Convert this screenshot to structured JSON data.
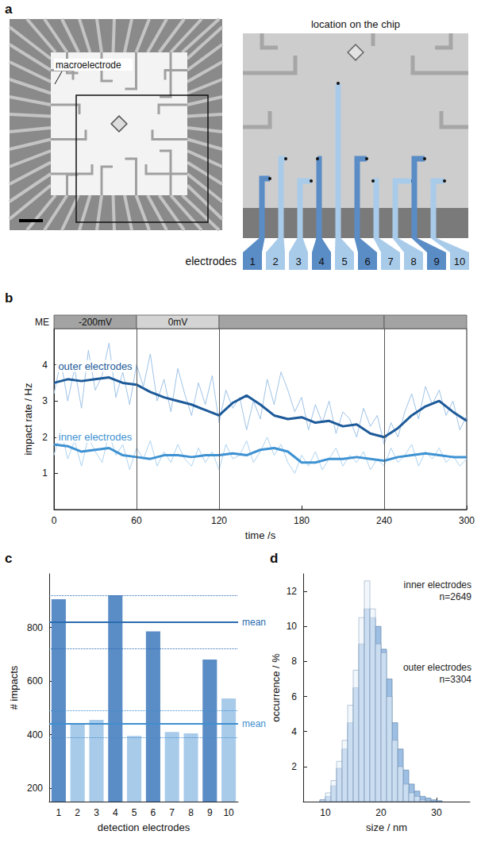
{
  "figure": {
    "panel_label": "a",
    "overview": {
      "annotation": "macroelectrode"
    },
    "detail": {
      "title": "location on the chip",
      "electrodes_label": "electrodes",
      "electrodes": [
        1,
        2,
        3,
        4,
        5,
        6,
        7,
        8,
        9,
        10
      ],
      "colors": [
        "#5a8cc6",
        "#a9cbea",
        "#a9cbea",
        "#5a8cc6",
        "#a9cbea",
        "#5a8cc6",
        "#a9cbea",
        "#a9cbea",
        "#5a8cc6",
        "#a9cbea"
      ]
    }
  },
  "chart_data": [
    {
      "panel_label": "b",
      "type": "line",
      "xlabel": "time /s",
      "ylabel": "impact rate / Hz",
      "xlim": [
        0,
        300
      ],
      "xticks": [
        0,
        60,
        120,
        180,
        240,
        300
      ],
      "ylim": [
        0,
        5
      ],
      "yticks": [
        1,
        2,
        3,
        4
      ],
      "grid": false,
      "electrode_potential": {
        "label": "ME",
        "phases": [
          {
            "start": 0,
            "end": 60,
            "label": "-200mV",
            "color": "#a3a3a3"
          },
          {
            "start": 60,
            "end": 120,
            "label": "0mV",
            "color": "#d4d4d4"
          },
          {
            "start": 120,
            "end": 240,
            "label": null,
            "color": "#a3a3a3"
          },
          {
            "start": 240,
            "end": 300,
            "label": null,
            "color": "#a3a3a3"
          }
        ]
      },
      "series": [
        {
          "color": "#9fc3e7",
          "line_style": "thin",
          "x": [
            0,
            5,
            10,
            15,
            20,
            25,
            30,
            35,
            40,
            45,
            50,
            55,
            60,
            65,
            70,
            75,
            80,
            85,
            90,
            95,
            100,
            105,
            110,
            115,
            120,
            125,
            130,
            135,
            140,
            145,
            150,
            155,
            160,
            165,
            170,
            175,
            180,
            185,
            190,
            195,
            200,
            205,
            210,
            215,
            220,
            225,
            230,
            235,
            240,
            245,
            250,
            255,
            260,
            265,
            270,
            275,
            280,
            285,
            290,
            295,
            300
          ],
          "values": [
            3.2,
            4.1,
            3.0,
            3.9,
            2.8,
            4.4,
            3.3,
            3.7,
            4.6,
            3.1,
            3.8,
            2.9,
            4.0,
            3.4,
            4.3,
            3.0,
            3.6,
            2.7,
            3.9,
            3.2,
            2.6,
            3.5,
            2.9,
            3.7,
            2.4,
            3.3,
            2.8,
            3.1,
            2.2,
            3.0,
            2.5,
            3.6,
            2.9,
            3.8,
            3.3,
            2.7,
            3.1,
            2.2,
            2.9,
            2.4,
            3.0,
            2.1,
            2.7,
            2.5,
            2.0,
            2.8,
            2.3,
            2.6,
            1.8,
            2.4,
            2.0,
            2.7,
            3.2,
            2.5,
            3.4,
            2.9,
            3.3,
            2.6,
            3.0,
            2.2,
            2.6
          ]
        },
        {
          "color": "#aed3f0",
          "line_style": "thin",
          "x": [
            0,
            5,
            10,
            15,
            20,
            25,
            30,
            35,
            40,
            45,
            50,
            55,
            60,
            65,
            70,
            75,
            80,
            85,
            90,
            95,
            100,
            105,
            110,
            115,
            120,
            125,
            130,
            135,
            140,
            145,
            150,
            155,
            160,
            165,
            170,
            175,
            180,
            185,
            190,
            195,
            200,
            205,
            210,
            215,
            220,
            225,
            230,
            235,
            240,
            245,
            250,
            255,
            260,
            265,
            270,
            275,
            280,
            285,
            290,
            295,
            300
          ],
          "values": [
            1.5,
            2.2,
            1.4,
            1.9,
            1.2,
            2.0,
            1.6,
            1.3,
            2.1,
            1.5,
            1.8,
            1.1,
            1.7,
            1.4,
            1.9,
            1.2,
            1.6,
            1.3,
            1.8,
            1.4,
            1.2,
            1.7,
            1.3,
            1.6,
            1.1,
            1.8,
            1.4,
            1.5,
            1.9,
            1.3,
            1.6,
            2.0,
            1.5,
            1.8,
            1.3,
            1.0,
            1.5,
            1.2,
            1.6,
            1.1,
            1.4,
            1.7,
            1.2,
            1.5,
            1.3,
            1.6,
            1.1,
            1.4,
            1.2,
            1.7,
            1.3,
            1.5,
            1.8,
            1.2,
            1.6,
            1.4,
            1.7,
            1.3,
            1.5,
            1.2,
            1.4
          ]
        },
        {
          "annotation": "outer electrodes",
          "color": "#1d5a99",
          "line_style": "thick",
          "x": [
            0,
            10,
            20,
            30,
            40,
            50,
            60,
            70,
            80,
            90,
            100,
            110,
            120,
            130,
            140,
            150,
            160,
            170,
            180,
            190,
            200,
            210,
            220,
            230,
            240,
            250,
            260,
            270,
            280,
            290,
            300
          ],
          "values": [
            3.5,
            3.6,
            3.55,
            3.6,
            3.65,
            3.5,
            3.45,
            3.25,
            3.1,
            3.0,
            2.9,
            2.75,
            2.6,
            2.95,
            3.15,
            2.9,
            2.6,
            2.5,
            2.55,
            2.4,
            2.45,
            2.3,
            2.35,
            2.1,
            2.0,
            2.25,
            2.6,
            2.85,
            3.0,
            2.7,
            2.45
          ]
        },
        {
          "annotation": "inner electrodes",
          "color": "#3f92d2",
          "line_style": "thick",
          "x": [
            0,
            10,
            20,
            30,
            40,
            50,
            60,
            70,
            80,
            90,
            100,
            110,
            120,
            130,
            140,
            150,
            160,
            170,
            180,
            190,
            200,
            210,
            220,
            230,
            240,
            250,
            260,
            270,
            280,
            290,
            300
          ],
          "values": [
            1.8,
            1.75,
            1.6,
            1.65,
            1.7,
            1.5,
            1.45,
            1.4,
            1.5,
            1.5,
            1.45,
            1.5,
            1.5,
            1.55,
            1.5,
            1.65,
            1.7,
            1.6,
            1.3,
            1.3,
            1.4,
            1.4,
            1.45,
            1.4,
            1.35,
            1.45,
            1.5,
            1.55,
            1.5,
            1.45,
            1.45
          ]
        }
      ]
    },
    {
      "panel_label": "c",
      "type": "bar",
      "xlabel": "detection electrodes",
      "ylabel": "# impacts",
      "categories": [
        1,
        2,
        3,
        4,
        5,
        6,
        7,
        8,
        9,
        10
      ],
      "values": [
        905,
        440,
        455,
        920,
        395,
        785,
        410,
        405,
        680,
        535
      ],
      "colors": [
        "#5a8cc6",
        "#a9cbea",
        "#a9cbea",
        "#5a8cc6",
        "#a9cbea",
        "#5a8cc6",
        "#a9cbea",
        "#a9cbea",
        "#5a8cc6",
        "#a9cbea"
      ],
      "ylim": [
        150,
        1000
      ],
      "yticks": [
        200,
        400,
        600,
        800
      ],
      "grid": false,
      "means": [
        {
          "label": "mean",
          "value": 820,
          "lower": 720,
          "upper": 920,
          "color": "#2a6bb0"
        },
        {
          "label": "mean",
          "value": 440,
          "lower": 390,
          "upper": 490,
          "color": "#3f8fcf"
        }
      ]
    },
    {
      "panel_label": "d",
      "type": "histogram",
      "xlabel": "size / nm",
      "ylabel": "occurrence / %",
      "bins": [
        9,
        10,
        11,
        12,
        13,
        14,
        15,
        16,
        17,
        18,
        19,
        20,
        21,
        22,
        23,
        24,
        25,
        26,
        27,
        28,
        29,
        30,
        31
      ],
      "xlim": [
        6,
        36
      ],
      "xticks": [
        10,
        20,
        30
      ],
      "ylim": [
        0,
        13
      ],
      "yticks": [
        2,
        4,
        6,
        8,
        10,
        12
      ],
      "grid": false,
      "series": [
        {
          "annotation": "outer electrodes",
          "n_label": "n=3304",
          "color": "#9dbfe3",
          "values": [
            0.1,
            0.3,
            0.9,
            1.9,
            3,
            4.5,
            6.5,
            9,
            11,
            10.5,
            10,
            8.7,
            7,
            4.5,
            3,
            1.8,
            1,
            0.6,
            0.3,
            0.2,
            0.1,
            0.05
          ]
        },
        {
          "annotation": "inner electrodes",
          "n_label": "n=2649",
          "color": "#eaf2fa",
          "values": [
            0.1,
            0.5,
            1.2,
            2.3,
            3.5,
            5.5,
            7.5,
            10.5,
            12.6,
            11,
            9,
            8.5,
            6,
            3.5,
            2,
            1,
            0.5,
            0.3,
            0.1,
            0.05,
            0,
            0
          ]
        }
      ]
    }
  ]
}
